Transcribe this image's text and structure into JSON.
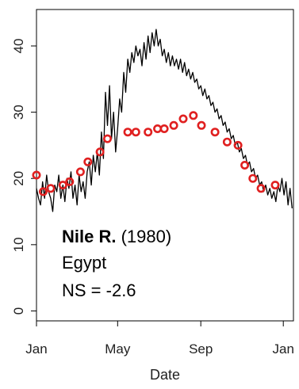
{
  "chart_data": {
    "type": "line",
    "title": "",
    "xlabel": "Date",
    "ylabel": "",
    "x_ticks": [
      {
        "day": 1,
        "label": "Jan"
      },
      {
        "day": 121,
        "label": "May"
      },
      {
        "day": 244,
        "label": "Sep"
      },
      {
        "day": 366,
        "label": "Jan"
      }
    ],
    "y_ticks": [
      0,
      10,
      20,
      30,
      40
    ],
    "xlim": [
      1,
      381
    ],
    "ylim": [
      -1.5,
      45.5
    ],
    "grid": false,
    "annotation": {
      "river_name": "Nile R.",
      "year": "(1980)",
      "country": "Egypt",
      "ns": "NS = -2.6"
    },
    "colors": {
      "line": "#000000",
      "points": "#e02020"
    },
    "series": [
      {
        "kind": "line",
        "points": [
          [
            1,
            18.5
          ],
          [
            4,
            17.0
          ],
          [
            7,
            16.0
          ],
          [
            10,
            19.5
          ],
          [
            13,
            17.0
          ],
          [
            16,
            20.5
          ],
          [
            19,
            18.0
          ],
          [
            22,
            17.0
          ],
          [
            25,
            15.0
          ],
          [
            28,
            19.0
          ],
          [
            31,
            18.0
          ],
          [
            34,
            20.5
          ],
          [
            37,
            17.0
          ],
          [
            40,
            19.0
          ],
          [
            43,
            16.5
          ],
          [
            46,
            20.0
          ],
          [
            49,
            18.5
          ],
          [
            52,
            21.0
          ],
          [
            55,
            17.0
          ],
          [
            58,
            19.0
          ],
          [
            61,
            16.0
          ],
          [
            64,
            20.5
          ],
          [
            67,
            18.0
          ],
          [
            70,
            19.5
          ],
          [
            73,
            17.0
          ],
          [
            76,
            21.0
          ],
          [
            79,
            22.5
          ],
          [
            82,
            19.0
          ],
          [
            85,
            23.5
          ],
          [
            88,
            21.0
          ],
          [
            91,
            24.0
          ],
          [
            94,
            20.5
          ],
          [
            97,
            27.0
          ],
          [
            100,
            23.0
          ],
          [
            103,
            33.0
          ],
          [
            106,
            28.0
          ],
          [
            109,
            34.0
          ],
          [
            112,
            26.0
          ],
          [
            115,
            30.0
          ],
          [
            118,
            24.0
          ],
          [
            121,
            27.5
          ],
          [
            124,
            32.0
          ],
          [
            127,
            30.0
          ],
          [
            130,
            36.0
          ],
          [
            133,
            33.0
          ],
          [
            136,
            38.0
          ],
          [
            139,
            36.0
          ],
          [
            142,
            39.0
          ],
          [
            145,
            37.5
          ],
          [
            148,
            40.0
          ],
          [
            151,
            38.5
          ],
          [
            154,
            39.5
          ],
          [
            157,
            37.0
          ],
          [
            160,
            40.5
          ],
          [
            163,
            38.0
          ],
          [
            166,
            41.5
          ],
          [
            169,
            39.0
          ],
          [
            172,
            42.0
          ],
          [
            175,
            40.0
          ],
          [
            178,
            42.5
          ],
          [
            181,
            40.0
          ],
          [
            184,
            41.0
          ],
          [
            187,
            38.5
          ],
          [
            190,
            39.5
          ],
          [
            193,
            37.5
          ],
          [
            196,
            39.0
          ],
          [
            199,
            37.0
          ],
          [
            202,
            38.5
          ],
          [
            205,
            37.0
          ],
          [
            208,
            38.0
          ],
          [
            211,
            36.5
          ],
          [
            214,
            38.0
          ],
          [
            217,
            36.0
          ],
          [
            220,
            37.5
          ],
          [
            223,
            35.5
          ],
          [
            226,
            36.5
          ],
          [
            229,
            35.0
          ],
          [
            232,
            36.0
          ],
          [
            235,
            34.5
          ],
          [
            238,
            35.0
          ],
          [
            241,
            33.5
          ],
          [
            244,
            34.0
          ],
          [
            247,
            32.5
          ],
          [
            250,
            33.5
          ],
          [
            253,
            32.0
          ],
          [
            256,
            32.5
          ],
          [
            259,
            31.0
          ],
          [
            262,
            31.5
          ],
          [
            265,
            30.0
          ],
          [
            268,
            30.5
          ],
          [
            271,
            29.0
          ],
          [
            274,
            29.5
          ],
          [
            277,
            28.0
          ],
          [
            280,
            28.5
          ],
          [
            283,
            27.0
          ],
          [
            286,
            27.5
          ],
          [
            289,
            26.0
          ],
          [
            292,
            26.5
          ],
          [
            295,
            25.0
          ],
          [
            298,
            25.5
          ],
          [
            301,
            24.0
          ],
          [
            304,
            24.5
          ],
          [
            307,
            23.0
          ],
          [
            310,
            23.5
          ],
          [
            313,
            22.0
          ],
          [
            316,
            22.5
          ],
          [
            319,
            21.0
          ],
          [
            322,
            21.5
          ],
          [
            325,
            20.0
          ],
          [
            328,
            20.5
          ],
          [
            331,
            19.0
          ],
          [
            334,
            19.5
          ],
          [
            337,
            18.0
          ],
          [
            340,
            19.0
          ],
          [
            343,
            17.5
          ],
          [
            346,
            18.5
          ],
          [
            349,
            17.0
          ],
          [
            352,
            18.0
          ],
          [
            355,
            16.5
          ],
          [
            358,
            19.0
          ],
          [
            361,
            18.0
          ],
          [
            364,
            20.0
          ],
          [
            367,
            17.5
          ],
          [
            370,
            19.5
          ],
          [
            373,
            16.0
          ],
          [
            376,
            18.5
          ],
          [
            379,
            15.5
          ]
        ]
      },
      {
        "kind": "scatter",
        "points": [
          [
            1,
            20.5
          ],
          [
            11,
            18.0
          ],
          [
            22,
            18.5
          ],
          [
            40,
            19.0
          ],
          [
            50,
            19.5
          ],
          [
            66,
            21.0
          ],
          [
            77,
            22.5
          ],
          [
            95,
            24.0
          ],
          [
            106,
            26.0
          ],
          [
            136,
            27.0
          ],
          [
            148,
            27.0
          ],
          [
            166,
            27.0
          ],
          [
            180,
            27.5
          ],
          [
            190,
            27.5
          ],
          [
            204,
            28.0
          ],
          [
            218,
            29.0
          ],
          [
            233,
            29.5
          ],
          [
            245,
            28.0
          ],
          [
            265,
            27.0
          ],
          [
            283,
            25.5
          ],
          [
            299,
            25.0
          ],
          [
            309,
            22.0
          ],
          [
            321,
            20.0
          ],
          [
            333,
            18.5
          ],
          [
            354,
            19.0
          ]
        ]
      }
    ]
  }
}
